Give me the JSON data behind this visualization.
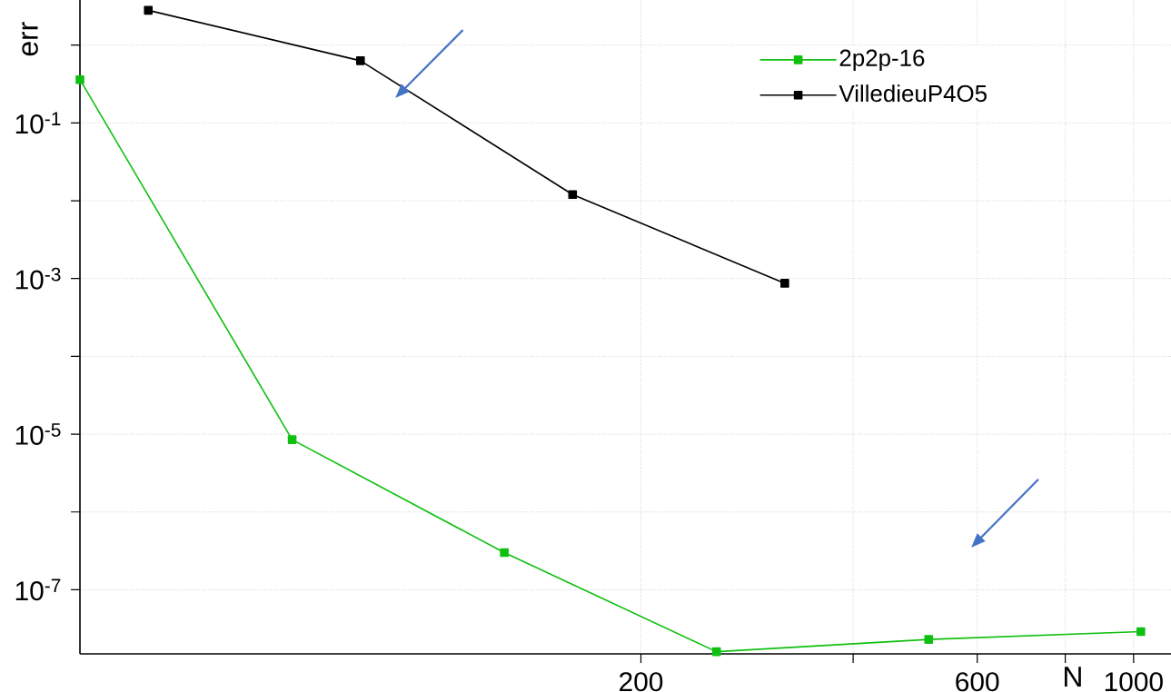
{
  "chart_data": {
    "type": "line",
    "xlabel": "N",
    "ylabel": "err",
    "x": [
      32,
      64,
      128,
      256,
      512,
      1024
    ],
    "series": [
      {
        "name": "2p2p-16",
        "color": "#10c010",
        "values": [
          0.36,
          8.5e-06,
          3e-07,
          1.6e-08,
          2.3e-08,
          2.9e-08
        ]
      },
      {
        "name": "VilledieuP4O5",
        "color": "#000000",
        "x": [
          40,
          80,
          160,
          320
        ],
        "values": [
          2.8,
          0.63,
          0.012,
          0.00087
        ]
      }
    ],
    "log": "xy",
    "xlim": [
      32,
      1130
    ],
    "ylim": [
      1.5e-08,
      3.8
    ],
    "xticks": [
      200,
      {
        "value": 400,
        "label": null
      },
      600,
      {
        "value": 800,
        "label": null
      },
      1000
    ],
    "yticks": [
      {
        "value": 1,
        "label": null
      },
      {
        "value": 0.1,
        "label": "10$^{-1}$"
      },
      {
        "value": 0.01,
        "label": null
      },
      {
        "value": 0.001,
        "label": "10$^{-3}$"
      },
      {
        "value": 0.0001,
        "label": null
      },
      {
        "value": 1e-05,
        "label": "10$^{-5}$"
      },
      {
        "value": 1e-06,
        "label": null
      },
      {
        "value": 1e-07,
        "label": "10$^{-7}$"
      }
    ],
    "grid": true,
    "legend": "top right",
    "marker": "square"
  }
}
